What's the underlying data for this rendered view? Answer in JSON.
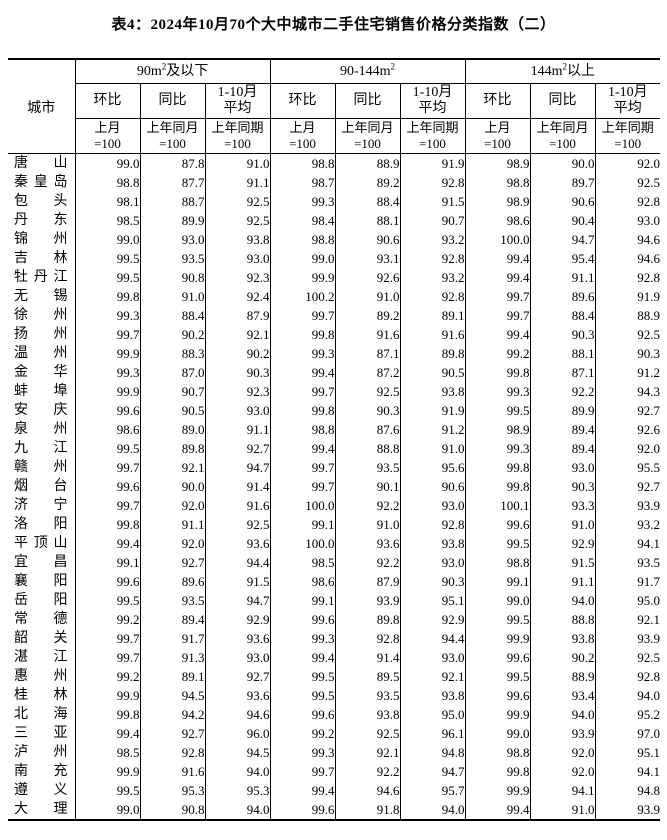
{
  "page": {
    "title": "表4：2024年10月70个大中城市二手住宅销售价格分类指数（二）"
  },
  "table": {
    "city_header": "城市",
    "groups": [
      {
        "pre": "90m",
        "sup": "2",
        "post": "及以下"
      },
      {
        "pre": "90-144m",
        "sup": "2",
        "post": ""
      },
      {
        "pre": "144m",
        "sup": "2",
        "post": "以上"
      }
    ],
    "sub_headers": [
      "环比",
      "同比",
      "1-10月\n平均"
    ],
    "base_headers": [
      "上月\n=100",
      "上年同月\n=100",
      "上年同期\n=100"
    ],
    "rows": [
      {
        "city": "唐山",
        "values": [
          "99.0",
          "87.8",
          "91.0",
          "98.8",
          "88.9",
          "91.9",
          "98.9",
          "90.0",
          "92.0"
        ]
      },
      {
        "city": "秦皇岛",
        "values": [
          "98.8",
          "87.7",
          "91.1",
          "98.7",
          "89.2",
          "92.8",
          "98.8",
          "89.7",
          "92.5"
        ]
      },
      {
        "city": "包头",
        "values": [
          "98.1",
          "88.7",
          "92.5",
          "99.3",
          "88.4",
          "91.5",
          "98.9",
          "90.6",
          "92.8"
        ]
      },
      {
        "city": "丹东",
        "values": [
          "98.5",
          "89.9",
          "92.5",
          "98.4",
          "88.1",
          "90.7",
          "98.6",
          "90.4",
          "93.0"
        ]
      },
      {
        "city": "锦州",
        "values": [
          "99.0",
          "93.0",
          "93.8",
          "98.8",
          "90.6",
          "93.2",
          "100.0",
          "94.7",
          "94.6"
        ]
      },
      {
        "city": "吉林",
        "values": [
          "99.5",
          "93.5",
          "93.0",
          "99.0",
          "93.1",
          "92.8",
          "99.4",
          "95.4",
          "94.6"
        ]
      },
      {
        "city": "牡丹江",
        "values": [
          "99.5",
          "90.8",
          "92.3",
          "99.9",
          "92.6",
          "93.2",
          "99.4",
          "91.1",
          "92.8"
        ]
      },
      {
        "city": "无锡",
        "values": [
          "99.8",
          "91.0",
          "92.4",
          "100.2",
          "91.0",
          "92.8",
          "99.7",
          "89.6",
          "91.9"
        ]
      },
      {
        "city": "徐州",
        "values": [
          "99.3",
          "88.4",
          "87.9",
          "99.7",
          "89.2",
          "89.1",
          "99.7",
          "88.4",
          "88.9"
        ]
      },
      {
        "city": "扬州",
        "values": [
          "99.7",
          "90.2",
          "92.1",
          "99.8",
          "91.6",
          "91.6",
          "99.4",
          "90.3",
          "92.5"
        ]
      },
      {
        "city": "温州",
        "values": [
          "99.9",
          "88.3",
          "90.2",
          "99.3",
          "87.1",
          "89.8",
          "99.2",
          "88.1",
          "90.3"
        ]
      },
      {
        "city": "金华",
        "values": [
          "99.3",
          "87.0",
          "90.3",
          "99.4",
          "87.2",
          "90.5",
          "99.8",
          "87.1",
          "91.2"
        ]
      },
      {
        "city": "蚌埠",
        "values": [
          "99.9",
          "90.7",
          "92.3",
          "99.7",
          "92.5",
          "93.8",
          "99.3",
          "92.2",
          "94.3"
        ]
      },
      {
        "city": "安庆",
        "values": [
          "99.6",
          "90.5",
          "93.0",
          "99.8",
          "90.3",
          "91.9",
          "99.5",
          "89.9",
          "92.7"
        ]
      },
      {
        "city": "泉州",
        "values": [
          "98.6",
          "89.0",
          "91.1",
          "98.8",
          "87.6",
          "91.2",
          "98.9",
          "89.4",
          "92.6"
        ]
      },
      {
        "city": "九江",
        "values": [
          "99.5",
          "89.8",
          "92.7",
          "99.4",
          "88.8",
          "91.0",
          "99.3",
          "89.4",
          "92.0"
        ]
      },
      {
        "city": "赣州",
        "values": [
          "99.7",
          "92.1",
          "94.7",
          "99.7",
          "93.5",
          "95.6",
          "99.8",
          "93.0",
          "95.5"
        ]
      },
      {
        "city": "烟台",
        "values": [
          "99.6",
          "90.0",
          "91.4",
          "99.7",
          "90.1",
          "90.6",
          "99.8",
          "90.3",
          "92.7"
        ]
      },
      {
        "city": "济宁",
        "values": [
          "99.7",
          "92.0",
          "91.6",
          "100.0",
          "92.2",
          "93.0",
          "100.1",
          "93.3",
          "93.9"
        ]
      },
      {
        "city": "洛阳",
        "values": [
          "99.8",
          "91.1",
          "92.5",
          "99.1",
          "91.0",
          "92.8",
          "99.6",
          "91.0",
          "93.2"
        ]
      },
      {
        "city": "平顶山",
        "values": [
          "99.4",
          "92.0",
          "93.6",
          "100.0",
          "93.6",
          "93.8",
          "99.5",
          "92.9",
          "94.1"
        ]
      },
      {
        "city": "宜昌",
        "values": [
          "99.1",
          "92.7",
          "94.4",
          "98.5",
          "92.2",
          "93.0",
          "98.8",
          "91.5",
          "93.5"
        ]
      },
      {
        "city": "襄阳",
        "values": [
          "99.6",
          "89.6",
          "91.5",
          "98.6",
          "87.9",
          "90.3",
          "99.1",
          "91.1",
          "91.7"
        ]
      },
      {
        "city": "岳阳",
        "values": [
          "99.5",
          "93.5",
          "94.7",
          "99.1",
          "93.9",
          "95.1",
          "99.0",
          "94.0",
          "95.0"
        ]
      },
      {
        "city": "常德",
        "values": [
          "99.2",
          "89.4",
          "92.9",
          "99.6",
          "89.8",
          "92.9",
          "99.5",
          "88.8",
          "92.1"
        ]
      },
      {
        "city": "韶关",
        "values": [
          "99.7",
          "91.7",
          "93.6",
          "99.3",
          "92.8",
          "94.4",
          "99.9",
          "93.8",
          "93.9"
        ]
      },
      {
        "city": "湛江",
        "values": [
          "99.7",
          "91.3",
          "93.0",
          "99.4",
          "91.4",
          "93.0",
          "99.6",
          "90.2",
          "92.5"
        ]
      },
      {
        "city": "惠州",
        "values": [
          "99.2",
          "89.1",
          "92.7",
          "99.5",
          "89.5",
          "92.1",
          "99.5",
          "88.9",
          "92.8"
        ]
      },
      {
        "city": "桂林",
        "values": [
          "99.9",
          "94.5",
          "93.6",
          "99.5",
          "93.5",
          "93.8",
          "99.6",
          "93.4",
          "94.0"
        ]
      },
      {
        "city": "北海",
        "values": [
          "99.8",
          "94.2",
          "94.6",
          "99.6",
          "93.8",
          "95.0",
          "99.9",
          "94.0",
          "95.2"
        ]
      },
      {
        "city": "三亚",
        "values": [
          "99.4",
          "92.7",
          "96.0",
          "99.2",
          "92.5",
          "96.1",
          "99.0",
          "93.9",
          "97.0"
        ]
      },
      {
        "city": "泸州",
        "values": [
          "98.5",
          "92.8",
          "94.5",
          "99.3",
          "92.1",
          "94.8",
          "98.8",
          "92.0",
          "95.1"
        ]
      },
      {
        "city": "南充",
        "values": [
          "99.9",
          "91.6",
          "94.0",
          "99.7",
          "92.2",
          "94.7",
          "99.8",
          "92.0",
          "94.1"
        ]
      },
      {
        "city": "遵义",
        "values": [
          "99.5",
          "95.3",
          "95.3",
          "99.4",
          "94.6",
          "95.7",
          "99.9",
          "94.1",
          "94.8"
        ]
      },
      {
        "city": "大理",
        "values": [
          "99.0",
          "90.8",
          "94.0",
          "99.6",
          "91.8",
          "94.0",
          "99.4",
          "91.0",
          "93.9"
        ]
      }
    ]
  }
}
